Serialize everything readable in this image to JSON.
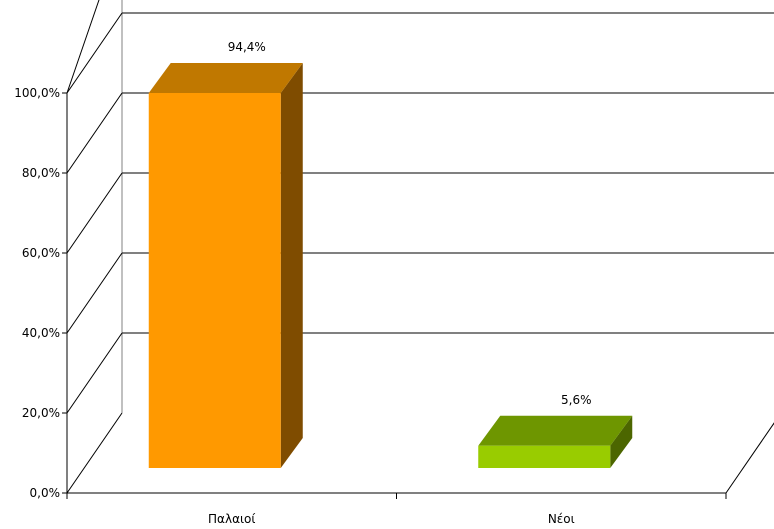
{
  "chart_data": {
    "type": "bar",
    "categories": [
      "Παλαιοί",
      "Νέοι"
    ],
    "values": [
      94.4,
      5.6
    ],
    "data_labels": [
      "94,4%",
      "5,6%"
    ],
    "y_ticks": [
      "0,0%",
      "20,0%",
      "40,0%",
      "60,0%",
      "80,0%",
      "100,0%"
    ],
    "ylim": [
      0,
      100
    ],
    "grid": true,
    "three_d": true,
    "colors": {
      "bar_front": [
        "#FF9900",
        "#99CC00"
      ],
      "bar_top": [
        "#C07800",
        "#6E9600"
      ],
      "bar_side": [
        "#7F4C00",
        "#4C6600"
      ]
    },
    "title": "",
    "xlabel": "",
    "ylabel": ""
  }
}
